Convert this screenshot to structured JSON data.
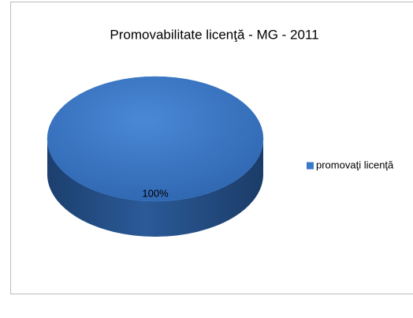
{
  "chart_data": {
    "type": "pie",
    "title": "Promovabilitate licenţă - MG - 2011",
    "categories": [
      "promovaţi licenţă"
    ],
    "values": [
      100
    ],
    "value_labels": [
      "100%"
    ],
    "colors": [
      "#3a78c8"
    ],
    "legend": "right"
  }
}
